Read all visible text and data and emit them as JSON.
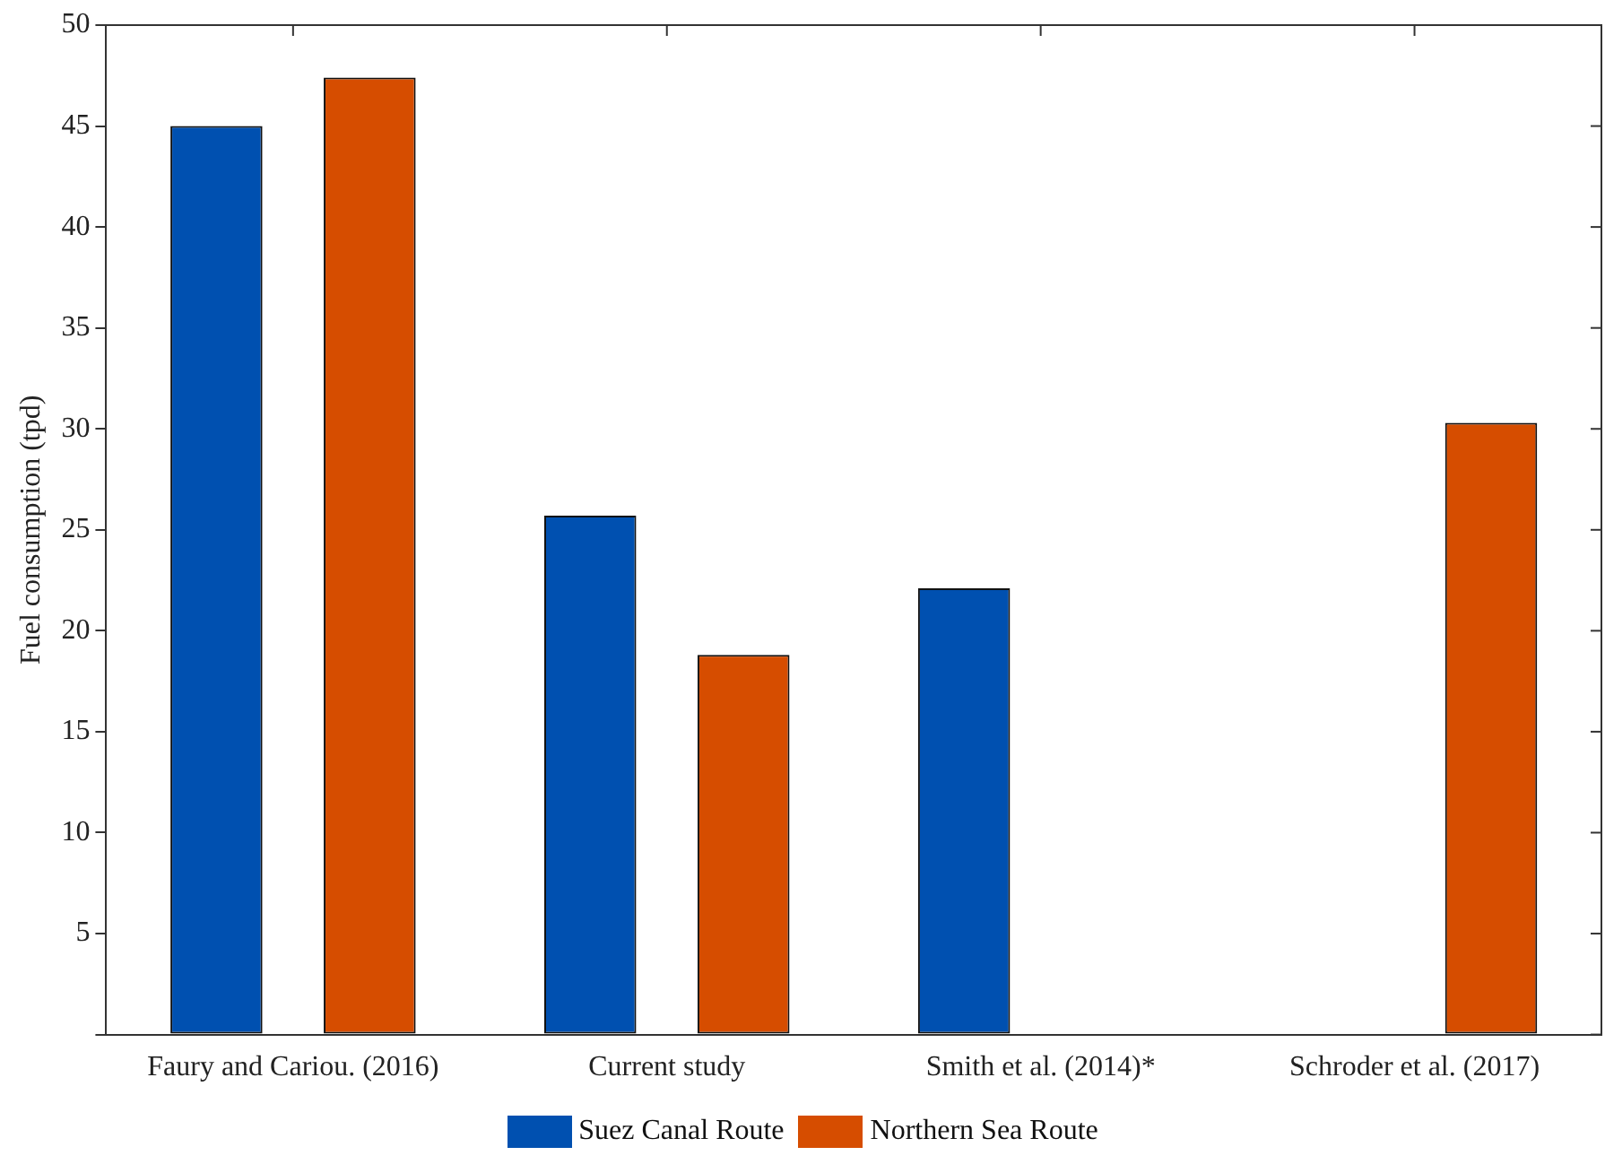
{
  "chart_data": {
    "type": "bar",
    "ylabel": "Fuel consumption (tpd)",
    "categories": [
      "Faury and Cariou. (2016)",
      "Current study",
      "Smith et al. (2014)*",
      "Schroder et al. (2017)"
    ],
    "series": [
      {
        "name": "Suez Canal Route",
        "color": "#0050b0",
        "values": [
          45,
          25.7,
          22.1,
          null
        ]
      },
      {
        "name": "Northern Sea Route",
        "color": "#d64d00",
        "values": [
          47.4,
          18.8,
          null,
          30.3
        ]
      }
    ],
    "ylim": [
      0,
      50
    ],
    "yticks": [
      {
        "value": 0,
        "label": null
      },
      5,
      10,
      15,
      20,
      25,
      30,
      35,
      40,
      45,
      50
    ],
    "grid": false,
    "legend": "bottom"
  }
}
